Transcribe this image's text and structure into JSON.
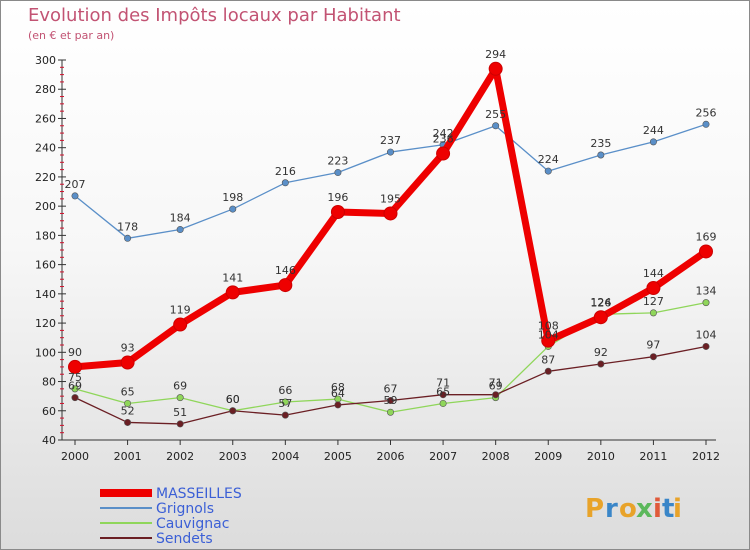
{
  "chart_data": {
    "type": "line",
    "title": "Evolution des Impôts locaux par Habitant",
    "subtitle": "(en € et par an)",
    "x": [
      "2000",
      "2001",
      "2002",
      "2003",
      "2004",
      "2005",
      "2006",
      "2007",
      "2008",
      "2009",
      "2010",
      "2011",
      "2012"
    ],
    "ylim": [
      40,
      300
    ],
    "yticks": [
      40,
      60,
      80,
      100,
      120,
      140,
      160,
      180,
      200,
      220,
      240,
      260,
      280,
      300
    ],
    "grid": false,
    "legend_position": "bottom-left",
    "series": [
      {
        "name": "Grignols",
        "color": "#5a8fc8",
        "values": [
          207,
          178,
          184,
          198,
          216,
          223,
          237,
          242,
          255,
          224,
          235,
          244,
          256
        ]
      },
      {
        "name": "Cauvignac",
        "color": "#8fd65a",
        "values": [
          75,
          65,
          69,
          60,
          66,
          68,
          59,
          65,
          69,
          104,
          126,
          127,
          134
        ]
      },
      {
        "name": "Sendets",
        "color": "#6b1f24",
        "values": [
          69,
          52,
          51,
          60,
          57,
          64,
          67,
          71,
          71,
          87,
          92,
          97,
          104
        ]
      },
      {
        "name": "MASSEILLES",
        "color": "#ee0000",
        "values": [
          90,
          93,
          119,
          141,
          146,
          196,
          195,
          236,
          294,
          108,
          124,
          144,
          169
        ]
      }
    ],
    "legend_order": [
      "MASSEILLES",
      "Grignols",
      "Cauvignac",
      "Sendets"
    ]
  },
  "brand": {
    "letters": [
      "P",
      "r",
      "o",
      "x",
      "i",
      "t",
      "i"
    ],
    "colors": [
      "#e8a32a",
      "#3a86c8",
      "#e8a32a",
      "#5cb85c",
      "#e05a3a",
      "#3a86c8",
      "#e8a32a"
    ]
  }
}
